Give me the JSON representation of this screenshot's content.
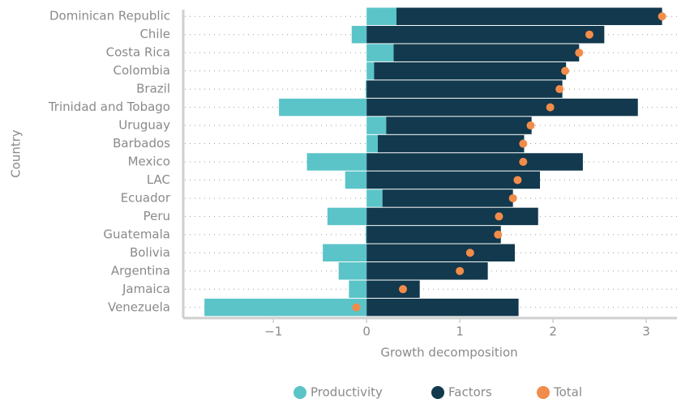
{
  "chart_data": {
    "type": "bar",
    "orientation": "horizontal",
    "stacked": true,
    "x_label": "Growth decomposition",
    "y_label": "Country",
    "categories": [
      "Dominican Republic",
      "Chile",
      "Costa Rica",
      "Colombia",
      "Brazil",
      "Trinidad and Tobago",
      "Uruguay",
      "Barbados",
      "Mexico",
      "LAC",
      "Ecuador",
      "Peru",
      "Guatemala",
      "Bolivia",
      "Argentina",
      "Jamaica",
      "Venezuela"
    ],
    "series": [
      {
        "name": "Productivity",
        "color": "#5bc4c8",
        "mark": "bar",
        "values": [
          0.32,
          -0.16,
          0.29,
          0.08,
          -0.01,
          -0.94,
          0.21,
          0.12,
          -0.64,
          -0.23,
          0.17,
          -0.42,
          -0.01,
          -0.47,
          -0.3,
          -0.19,
          -1.74
        ]
      },
      {
        "name": "Factors",
        "color": "#12394d",
        "mark": "bar",
        "values": [
          2.85,
          2.55,
          1.99,
          2.06,
          2.1,
          2.91,
          1.56,
          1.57,
          2.32,
          1.86,
          1.4,
          1.84,
          1.44,
          1.59,
          1.3,
          0.57,
          1.63
        ]
      },
      {
        "name": "Total",
        "color": "#f28c4a",
        "mark": "dot",
        "values": [
          3.17,
          2.39,
          2.28,
          2.13,
          2.07,
          1.97,
          1.76,
          1.68,
          1.68,
          1.62,
          1.57,
          1.42,
          1.41,
          1.11,
          1.0,
          0.39,
          -0.11
        ]
      }
    ],
    "xlim": [
      -1.95,
      3.33
    ],
    "xticks": [
      {
        "value": -1,
        "label": "−1"
      },
      0,
      1,
      2,
      3
    ],
    "grid": true,
    "legend": "bottom"
  }
}
